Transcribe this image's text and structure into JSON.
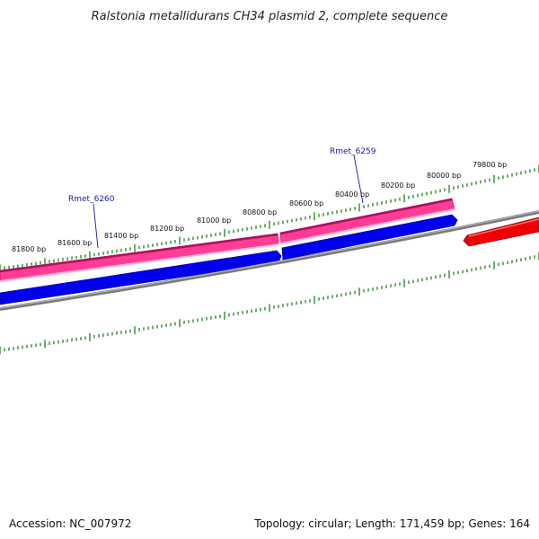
{
  "title": "Ralstonia metallidurans CH34 plasmid 2, complete sequence",
  "footer": {
    "accession": "Accession: NC_007972",
    "stats": "Topology: circular; Length: 171,459 bp; Genes: 164"
  },
  "colors": {
    "tick": "#2e8b2e",
    "backbone": "#808080",
    "gene_forward": "#ff3d96",
    "gene_reverse": "#0000ee",
    "gene_other": "#ee0000",
    "gene_label": "#1a1aa0"
  },
  "ticks": {
    "labels": [
      "81800 bp",
      "81600 bp",
      "81400 bp",
      "81200 bp",
      "81000 bp",
      "80800 bp",
      "80600 bp",
      "80400 bp",
      "80200 bp",
      "80000 bp",
      "79800 bp"
    ]
  },
  "genes": [
    {
      "name": "Rmet_6260",
      "strand": "forward"
    },
    {
      "name": "Rmet_6259",
      "strand": "forward"
    },
    {
      "name": "",
      "strand": "reverse"
    },
    {
      "name": "",
      "strand": "reverse"
    },
    {
      "name": "",
      "strand": "other"
    }
  ]
}
